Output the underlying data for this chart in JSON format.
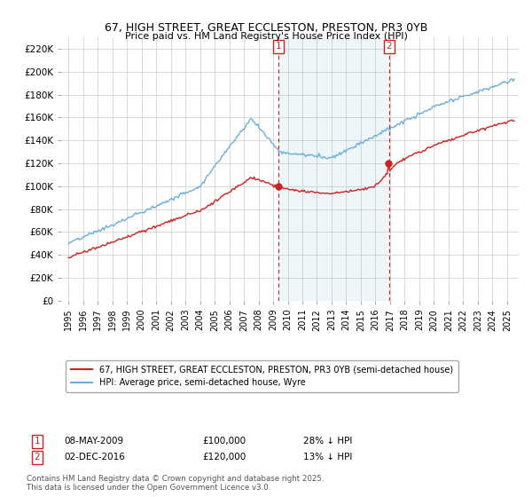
{
  "title": "67, HIGH STREET, GREAT ECCLESTON, PRESTON, PR3 0YB",
  "subtitle": "Price paid vs. HM Land Registry's House Price Index (HPI)",
  "ylim": [
    0,
    230000
  ],
  "yticks": [
    0,
    20000,
    40000,
    60000,
    80000,
    100000,
    120000,
    140000,
    160000,
    180000,
    200000,
    220000
  ],
  "ytick_labels": [
    "£0",
    "£20K",
    "£40K",
    "£60K",
    "£80K",
    "£100K",
    "£120K",
    "£140K",
    "£160K",
    "£180K",
    "£200K",
    "£220K"
  ],
  "hpi_color": "#6baed6",
  "price_color": "#cc2222",
  "marker1_x": 2009.35,
  "marker2_x": 2016.92,
  "marker1_label": "08-MAY-2009",
  "marker1_price": "£100,000",
  "marker1_hpi": "28% ↓ HPI",
  "marker2_label": "02-DEC-2016",
  "marker2_price": "£120,000",
  "marker2_hpi": "13% ↓ HPI",
  "legend1": "67, HIGH STREET, GREAT ECCLESTON, PRESTON, PR3 0YB (semi-detached house)",
  "legend2": "HPI: Average price, semi-detached house, Wyre",
  "footnote": "Contains HM Land Registry data © Crown copyright and database right 2025.\nThis data is licensed under the Open Government Licence v3.0.",
  "background_color": "#ffffff",
  "grid_color": "#cccccc"
}
